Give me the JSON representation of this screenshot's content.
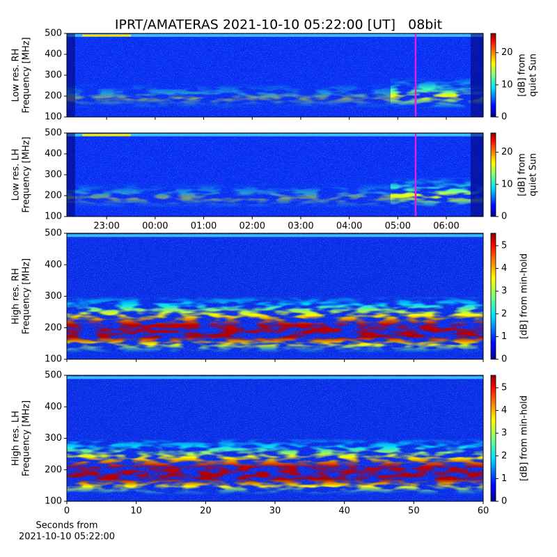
{
  "title": "IPRT/AMATERAS 2021-10-10 05:22:00 [UT]   08bit",
  "chart_data": [
    {
      "type": "spectrogram",
      "ylabel": [
        "Low res. RH",
        "Frequency [MHz]"
      ],
      "xlim": [
        -1.82,
        6.76
      ],
      "ylim": [
        100,
        500
      ],
      "yticks": [
        100,
        200,
        300,
        400,
        500
      ],
      "marker_x": 5.367,
      "marker_color": "#e020e0",
      "colorbar": {
        "label": [
          "[dB] from",
          "quiet Sun"
        ],
        "lim": [
          0,
          26
        ],
        "ticks": [
          0,
          10,
          20
        ],
        "colormap": "jet"
      }
    },
    {
      "type": "spectrogram",
      "ylabel": [
        "Low res. LH",
        "Frequency [MHz]"
      ],
      "xlim": [
        -1.82,
        6.76
      ],
      "ylim": [
        100,
        500
      ],
      "yticks": [
        100,
        200,
        300,
        400,
        500
      ],
      "xticks": [
        {
          "value": -1,
          "label": "23:00"
        },
        {
          "value": 0,
          "label": "00:00"
        },
        {
          "value": 1,
          "label": "01:00"
        },
        {
          "value": 2,
          "label": "02:00"
        },
        {
          "value": 3,
          "label": "03:00"
        },
        {
          "value": 4,
          "label": "04:00"
        },
        {
          "value": 5,
          "label": "05:00"
        },
        {
          "value": 6,
          "label": "06:00"
        }
      ],
      "marker_x": 5.367,
      "marker_color": "#e020e0",
      "colorbar": {
        "label": [
          "[dB] from",
          "quiet Sun"
        ],
        "lim": [
          0,
          26
        ],
        "ticks": [
          0,
          10,
          20
        ],
        "colormap": "jet"
      }
    },
    {
      "type": "spectrogram",
      "ylabel": [
        "High res. RH",
        "Frequency [MHz]"
      ],
      "xlim": [
        0,
        60
      ],
      "ylim": [
        100,
        500
      ],
      "yticks": [
        100,
        200,
        300,
        400,
        500
      ],
      "colorbar": {
        "label": [
          "[dB] from min-hold"
        ],
        "lim": [
          0,
          5.55
        ],
        "ticks": [
          0,
          1,
          2,
          3,
          4,
          5
        ],
        "colormap": "jet"
      }
    },
    {
      "type": "spectrogram",
      "ylabel": [
        "High res. LH",
        "Frequency [MHz]"
      ],
      "xlim": [
        0,
        60
      ],
      "ylim": [
        100,
        500
      ],
      "yticks": [
        100,
        200,
        300,
        400,
        500
      ],
      "xticks": [
        0,
        10,
        20,
        30,
        40,
        50,
        60
      ],
      "xlabel": [
        "Seconds from",
        "2021-10-10 05:22:00"
      ],
      "colorbar": {
        "label": [
          "[dB] from min-hold"
        ],
        "lim": [
          0,
          5.55
        ],
        "ticks": [
          0,
          1,
          2,
          3,
          4,
          5
        ],
        "colormap": "jet"
      }
    }
  ]
}
